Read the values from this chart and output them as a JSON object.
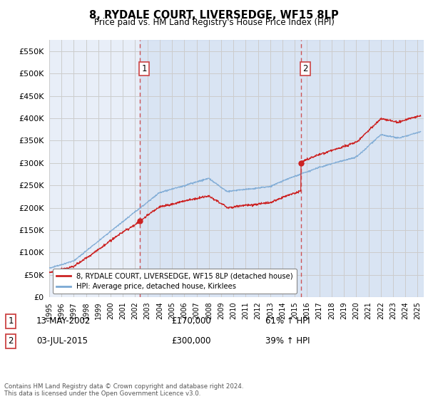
{
  "title": "8, RYDALE COURT, LIVERSEDGE, WF15 8LP",
  "subtitle": "Price paid vs. HM Land Registry's House Price Index (HPI)",
  "ylabel_ticks": [
    0,
    50000,
    100000,
    150000,
    200000,
    250000,
    300000,
    350000,
    400000,
    450000,
    500000,
    550000
  ],
  "ylim": [
    0,
    575000
  ],
  "xlim_min": 1995.0,
  "xlim_max": 2025.5,
  "sale1_year": 2002.36,
  "sale1_price": 170000,
  "sale1_label": "13-MAY-2002",
  "sale1_pct": "61% ↑ HPI",
  "sale2_year": 2015.5,
  "sale2_price": 300000,
  "sale2_label": "03-JUL-2015",
  "sale2_pct": "39% ↑ HPI",
  "hpi_line_color": "#7aa8d4",
  "price_line_color": "#cc2222",
  "marker_color": "#cc2222",
  "dashed_line_color": "#cc4444",
  "grid_color": "#cccccc",
  "bg_color": "#e8eef8",
  "bg_color_highlight": "#d0dcf0",
  "legend_entry1": "8, RYDALE COURT, LIVERSEDGE, WF15 8LP (detached house)",
  "legend_entry2": "HPI: Average price, detached house, Kirklees",
  "footer": "Contains HM Land Registry data © Crown copyright and database right 2024.\nThis data is licensed under the Open Government Licence v3.0.",
  "x_ticks": [
    1995,
    1996,
    1997,
    1998,
    1999,
    2000,
    2001,
    2002,
    2003,
    2004,
    2005,
    2006,
    2007,
    2008,
    2009,
    2010,
    2011,
    2012,
    2013,
    2014,
    2015,
    2016,
    2017,
    2018,
    2019,
    2020,
    2021,
    2022,
    2023,
    2024,
    2025
  ]
}
